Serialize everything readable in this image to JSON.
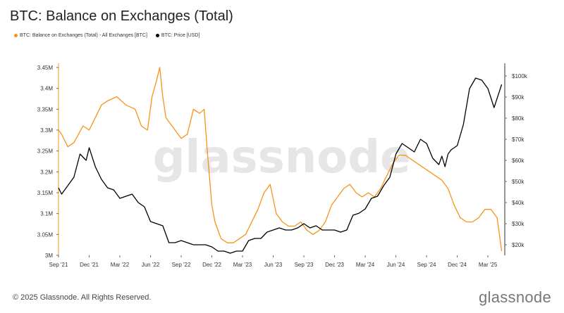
{
  "title": "BTC: Balance on Exchanges (Total)",
  "legend": {
    "series1": "BTC: Balance on Exchanges (Total) - All Exchanges [BTC]",
    "series2": "BTC: Price [USD]"
  },
  "colors": {
    "balance": "#f7931a",
    "price": "#000000",
    "axis": "#f7931a",
    "watermark": "#e6e6e6"
  },
  "watermark": "glassnode",
  "footer": {
    "copyright": "© 2025 Glassnode. All Rights Reserved.",
    "brand": "glassnode"
  },
  "chart_data": {
    "type": "line",
    "title": "BTC: Balance on Exchanges (Total)",
    "x_tick_labels": [
      "Sep '21",
      "Dec '21",
      "Mar '22",
      "Jun '22",
      "Sep '22",
      "Dec '22",
      "Mar '23",
      "Jun '23",
      "Sep '23",
      "Dec '23",
      "Mar '24",
      "Jun '24",
      "Sep '24",
      "Dec '24",
      "Mar '25"
    ],
    "y_left_ticks": [
      "3M",
      "3.05M",
      "3.1M",
      "3.15M",
      "3.2M",
      "3.25M",
      "3.3M",
      "3.35M",
      "3.4M",
      "3.45M"
    ],
    "y_left_range": [
      3.0,
      3.46
    ],
    "y_right_ticks": [
      "$20k",
      "$30k",
      "$40k",
      "$50k",
      "$60k",
      "$70k",
      "$80k",
      "$90k",
      "$100k"
    ],
    "y_right_range": [
      15,
      106
    ],
    "x_range": [
      0,
      14.55
    ],
    "series": [
      {
        "name": "BTC: Balance on Exchanges (Total) - All Exchanges [BTC]",
        "axis": "left",
        "x": [
          0,
          0.1,
          0.3,
          0.5,
          0.8,
          1.0,
          1.2,
          1.4,
          1.6,
          1.9,
          2.2,
          2.5,
          2.7,
          2.9,
          3.05,
          3.2,
          3.3,
          3.4,
          3.5,
          3.6,
          3.8,
          4.0,
          4.2,
          4.4,
          4.6,
          4.75,
          4.85,
          5.0,
          5.1,
          5.2,
          5.3,
          5.5,
          5.7,
          5.9,
          6.1,
          6.3,
          6.5,
          6.7,
          6.9,
          7.1,
          7.3,
          7.5,
          7.7,
          7.9,
          8.1,
          8.3,
          8.5,
          8.7,
          8.9,
          9.1,
          9.3,
          9.5,
          9.7,
          9.9,
          10.1,
          10.3,
          10.5,
          10.7,
          10.9,
          11.1,
          11.3,
          11.5,
          11.7,
          11.9,
          12.1,
          12.3,
          12.5,
          12.7,
          12.9,
          13.1,
          13.3,
          13.5,
          13.7,
          13.9,
          14.1,
          14.3,
          14.45
        ],
        "values": [
          3.3,
          3.29,
          3.26,
          3.27,
          3.31,
          3.3,
          3.33,
          3.36,
          3.37,
          3.38,
          3.36,
          3.35,
          3.31,
          3.3,
          3.38,
          3.42,
          3.45,
          3.38,
          3.33,
          3.32,
          3.3,
          3.28,
          3.29,
          3.35,
          3.34,
          3.35,
          3.25,
          3.12,
          3.08,
          3.06,
          3.04,
          3.03,
          3.03,
          3.04,
          3.05,
          3.08,
          3.11,
          3.15,
          3.17,
          3.1,
          3.08,
          3.07,
          3.07,
          3.08,
          3.06,
          3.05,
          3.06,
          3.08,
          3.12,
          3.14,
          3.16,
          3.17,
          3.15,
          3.14,
          3.15,
          3.14,
          3.16,
          3.19,
          3.22,
          3.24,
          3.24,
          3.23,
          3.22,
          3.21,
          3.2,
          3.19,
          3.18,
          3.16,
          3.12,
          3.09,
          3.08,
          3.08,
          3.09,
          3.11,
          3.11,
          3.09,
          3.01
        ]
      },
      {
        "name": "BTC: Price [USD]",
        "axis": "right",
        "unit": "thousand USD",
        "x": [
          0,
          0.1,
          0.3,
          0.5,
          0.7,
          0.9,
          1.0,
          1.2,
          1.4,
          1.6,
          1.8,
          2.0,
          2.2,
          2.4,
          2.6,
          2.8,
          3.0,
          3.2,
          3.4,
          3.6,
          3.8,
          4.0,
          4.2,
          4.4,
          4.6,
          4.8,
          5.0,
          5.2,
          5.4,
          5.6,
          5.8,
          6.0,
          6.2,
          6.4,
          6.6,
          6.8,
          7.0,
          7.2,
          7.4,
          7.6,
          7.8,
          8.0,
          8.2,
          8.4,
          8.6,
          8.8,
          9.0,
          9.2,
          9.4,
          9.6,
          9.8,
          10.0,
          10.2,
          10.4,
          10.6,
          10.8,
          11.0,
          11.2,
          11.4,
          11.6,
          11.8,
          12.0,
          12.2,
          12.4,
          12.5,
          12.6,
          12.7,
          12.8,
          12.9,
          13.0,
          13.2,
          13.4,
          13.6,
          13.8,
          14.0,
          14.2,
          14.45
        ],
        "values": [
          47,
          44,
          48,
          52,
          63,
          60,
          66,
          57,
          51,
          47,
          46,
          42,
          43,
          44,
          40,
          38,
          31,
          30,
          29,
          21,
          21,
          22,
          21,
          20,
          20,
          20,
          19,
          17,
          17,
          16,
          17,
          17,
          22,
          23,
          23,
          26,
          27,
          28,
          27,
          27,
          28,
          30,
          28,
          29,
          27,
          27,
          27,
          26,
          27,
          34,
          35,
          37,
          42,
          43,
          48,
          52,
          63,
          68,
          66,
          64,
          70,
          68,
          61,
          58,
          62,
          57,
          63,
          65,
          66,
          67,
          77,
          94,
          99,
          98,
          94,
          85,
          96
        ]
      }
    ],
    "grid": false,
    "legend_position": "top-left"
  }
}
